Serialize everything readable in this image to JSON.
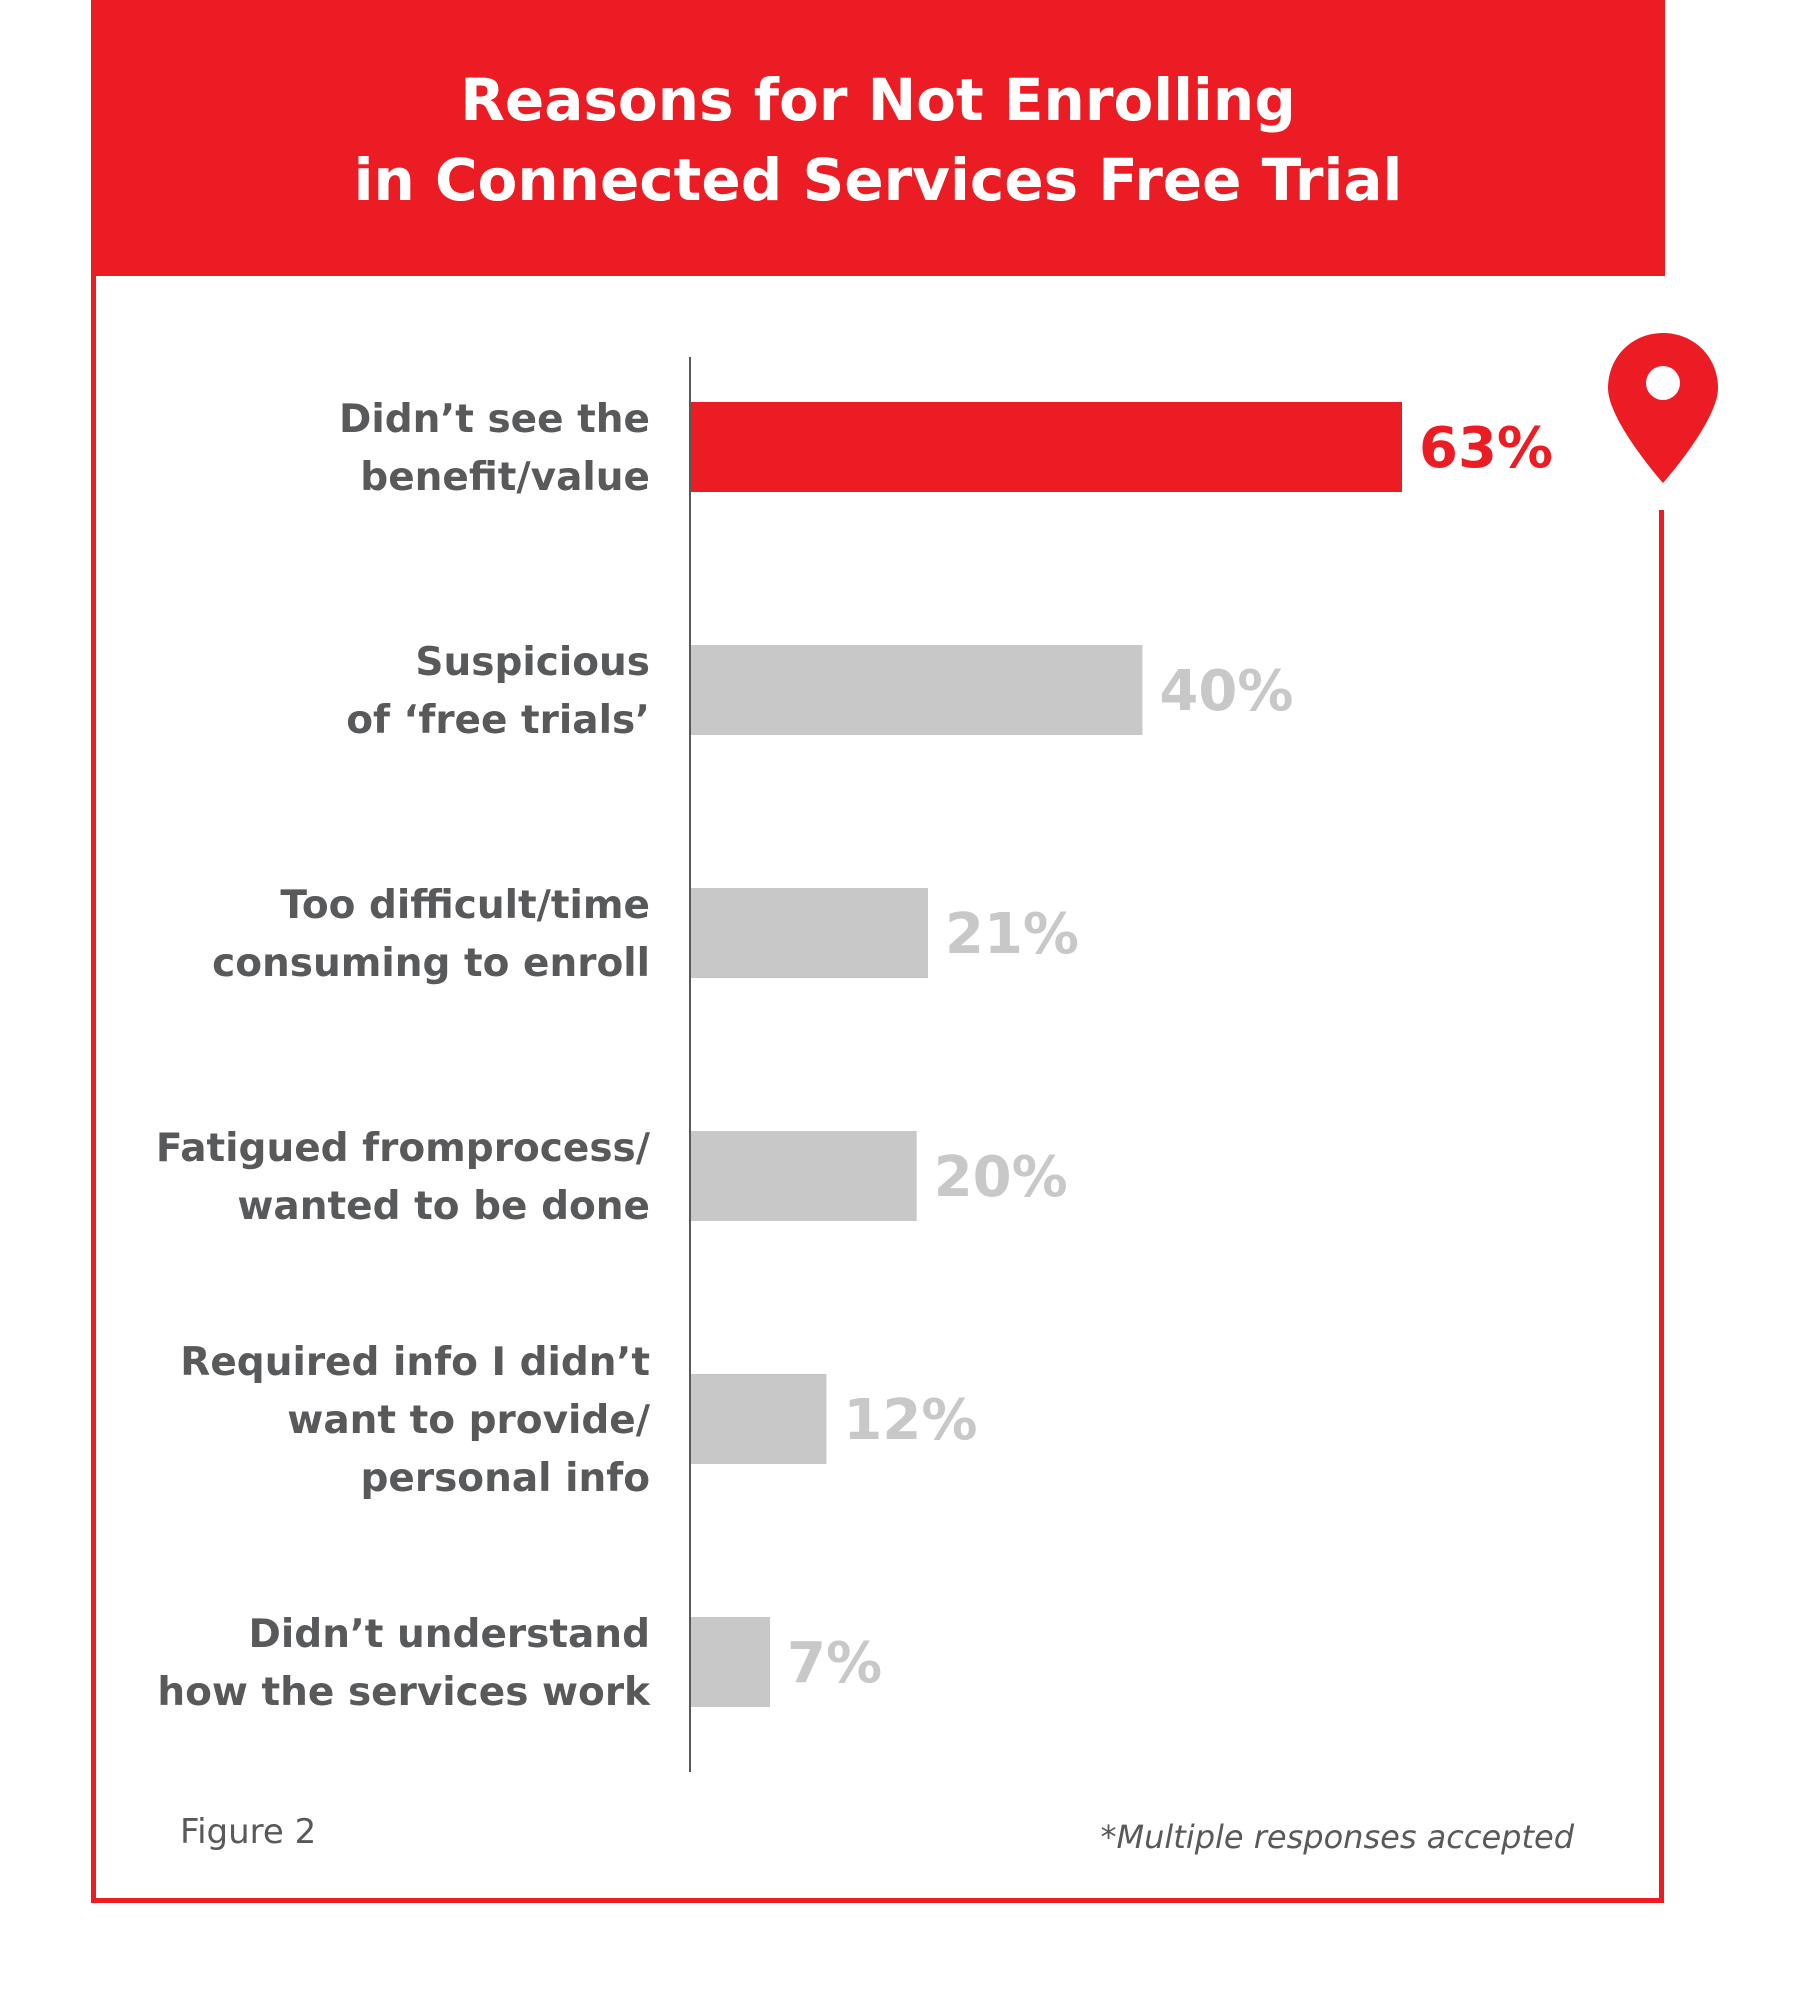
{
  "header": {
    "title_line1": "Reasons for Not Enrolling",
    "title_line2": "in Connected Services Free Trial"
  },
  "chart_data": {
    "type": "bar",
    "orientation": "horizontal",
    "title": "Reasons for Not Enrolling in Connected Services Free Trial",
    "categories": [
      [
        "Didn’t see the",
        "benefit/value"
      ],
      [
        "Suspicious",
        "of ‘free trials’"
      ],
      [
        "Too difficult/time",
        "consuming to enroll"
      ],
      [
        "Fatigued fromprocess/",
        "wanted to be done"
      ],
      [
        "Required info I didn’t",
        "want to provide/",
        "personal info"
      ],
      [
        "Didn’t understand",
        "how the services work"
      ]
    ],
    "values": [
      63,
      40,
      21,
      20,
      12,
      7
    ],
    "value_labels": [
      "63%",
      "40%",
      "21%",
      "20%",
      "12%",
      "7%"
    ],
    "highlight_index": 0,
    "xlim": [
      0,
      63
    ],
    "unit": "%",
    "grid": false,
    "legend": "none"
  },
  "colors": {
    "accent": "#ec1c24",
    "bar_default": "#c8c8c8",
    "label_default": "#c8c8c8",
    "category_text": "#58595b",
    "axis": "#58595b"
  },
  "icons": {
    "pin": "location-pin-icon"
  },
  "footer": {
    "figure_label": "Figure 2",
    "note": "*Multiple responses accepted"
  }
}
